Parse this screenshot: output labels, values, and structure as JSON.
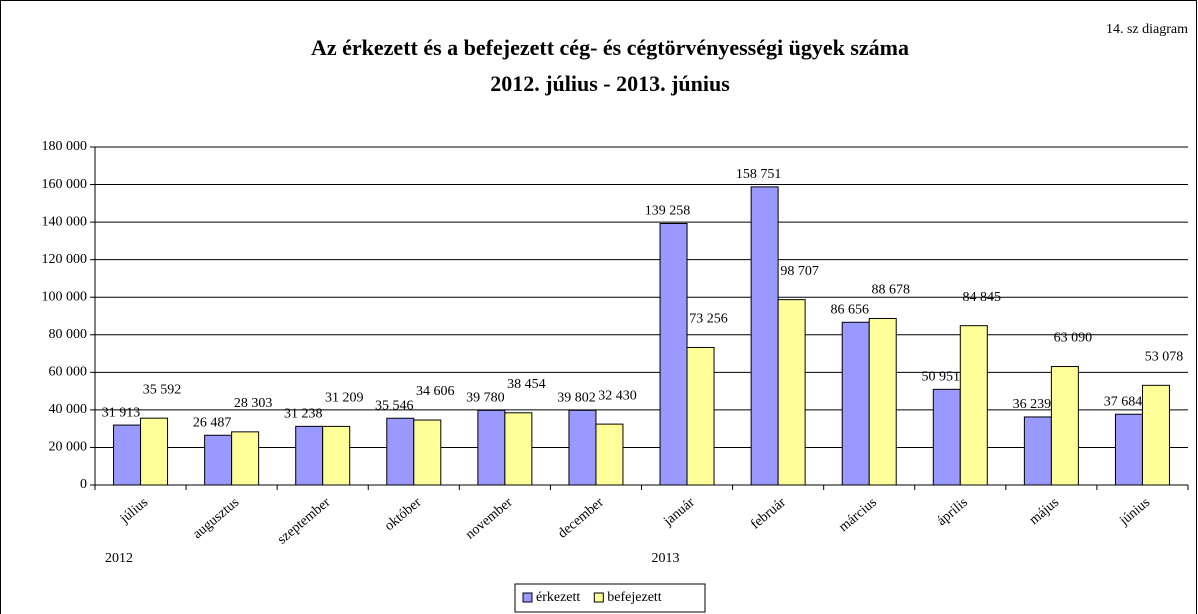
{
  "chart_data": {
    "type": "bar",
    "corner_note": "14. sz diagram",
    "title": "Az érkezett és a befejezett cég- és cégtörvényességi ügyek száma",
    "subtitle": "2012. július - 2013. június",
    "categories": [
      "július",
      "augusztus",
      "szeptember",
      "október",
      "november",
      "december",
      "január",
      "február",
      "március",
      "április",
      "május",
      "június"
    ],
    "year_labels": [
      "2012",
      null,
      null,
      null,
      null,
      null,
      "2013",
      null,
      null,
      null,
      null,
      null
    ],
    "series": [
      {
        "name": "érkezett",
        "color": "#9999ff",
        "values": [
          31913,
          26487,
          31238,
          35546,
          39780,
          39802,
          139258,
          158751,
          86656,
          50951,
          36239,
          37684
        ],
        "value_labels": [
          "31 913",
          "26 487",
          "31 238",
          "35 546",
          "39 780",
          "39 802",
          "139 258",
          "158 751",
          "86 656",
          "50 951",
          "36 239",
          "37 684"
        ]
      },
      {
        "name": "befejezett",
        "color": "#ffff99",
        "values": [
          35592,
          28303,
          31209,
          34606,
          38454,
          32430,
          73256,
          98707,
          88678,
          84845,
          63090,
          53078
        ],
        "value_labels": [
          "35 592",
          "28 303",
          "31 209",
          "34 606",
          "38 454",
          "32 430",
          "73 256",
          "98 707",
          "88 678",
          "84 845",
          "63 090",
          "53 078"
        ]
      }
    ],
    "ylim": [
      0,
      180000
    ],
    "yticks": [
      0,
      {
        "value": 20000,
        "label": "20 000"
      },
      {
        "value": 40000,
        "label": "40 000"
      },
      {
        "value": 60000,
        "label": "60 000"
      },
      {
        "value": 80000,
        "label": "80 000"
      },
      {
        "value": 100000,
        "label": "100 000"
      },
      {
        "value": 120000,
        "label": "120 000"
      },
      {
        "value": 140000,
        "label": "140 000"
      },
      {
        "value": 160000,
        "label": "160 000"
      },
      {
        "value": 180000,
        "label": "180 000"
      }
    ],
    "grid": true,
    "legend": "bottom"
  }
}
